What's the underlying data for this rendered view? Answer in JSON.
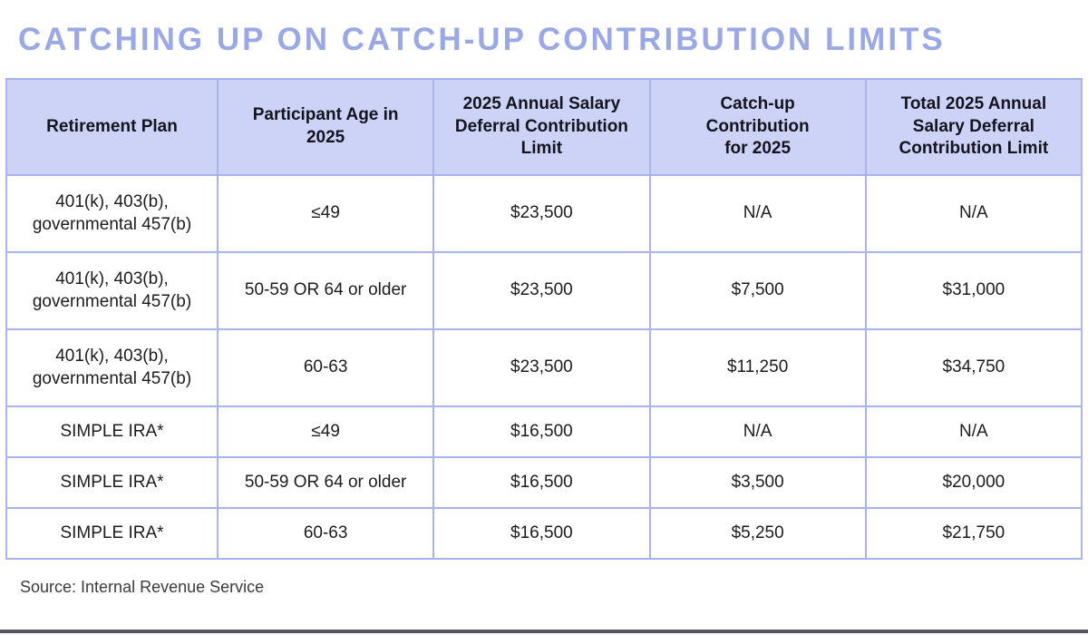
{
  "title": "CATCHING UP ON CATCH-UP CONTRIBUTION LIMITS",
  "source": "Source: Internal Revenue Service",
  "colors": {
    "title": "#9aa8e6",
    "header_bg": "#ccd3f7",
    "border": "#a9b4ea",
    "bottom_bar": "#565660"
  },
  "table": {
    "columns": [
      "Retirement Plan",
      "Participant Age in\n2025",
      "2025 Annual Salary\nDeferral Contribution\nLimit",
      "Catch-up\nContribution\nfor 2025",
      "Total 2025 Annual\nSalary Deferral\nContribution Limit"
    ],
    "rows": [
      [
        "401(k), 403(b),\ngovernmental 457(b)",
        "≤49",
        "$23,500",
        "N/A",
        "N/A"
      ],
      [
        "401(k), 403(b),\ngovernmental 457(b)",
        "50-59 OR 64 or older",
        "$23,500",
        "$7,500",
        "$31,000"
      ],
      [
        "401(k), 403(b),\ngovernmental 457(b)",
        "60-63",
        "$23,500",
        "$11,250",
        "$34,750"
      ],
      [
        "SIMPLE IRA*",
        "≤49",
        "$16,500",
        "N/A",
        "N/A"
      ],
      [
        "SIMPLE IRA*",
        "50-59 OR 64 or older",
        "$16,500",
        "$3,500",
        "$20,000"
      ],
      [
        "SIMPLE IRA*",
        "60-63",
        "$16,500",
        "$5,250",
        "$21,750"
      ]
    ]
  },
  "chart_data": {
    "type": "table",
    "title": "CATCHING UP ON CATCH-UP CONTRIBUTION LIMITS",
    "columns": [
      "Retirement Plan",
      "Participant Age in 2025",
      "2025 Annual Salary Deferral Contribution Limit",
      "Catch-up Contribution for 2025",
      "Total 2025 Annual Salary Deferral Contribution Limit"
    ],
    "rows": [
      [
        "401(k), 403(b), governmental 457(b)",
        "≤49",
        "$23,500",
        "N/A",
        "N/A"
      ],
      [
        "401(k), 403(b), governmental 457(b)",
        "50-59 OR 64 or older",
        "$23,500",
        "$7,500",
        "$31,000"
      ],
      [
        "401(k), 403(b), governmental 457(b)",
        "60-63",
        "$23,500",
        "$11,250",
        "$34,750"
      ],
      [
        "SIMPLE IRA*",
        "≤49",
        "$16,500",
        "N/A",
        "N/A"
      ],
      [
        "SIMPLE IRA*",
        "50-59 OR 64 or older",
        "$16,500",
        "$3,500",
        "$20,000"
      ],
      [
        "SIMPLE IRA*",
        "60-63",
        "$16,500",
        "$5,250",
        "$21,750"
      ]
    ],
    "source": "Source: Internal Revenue Service"
  }
}
